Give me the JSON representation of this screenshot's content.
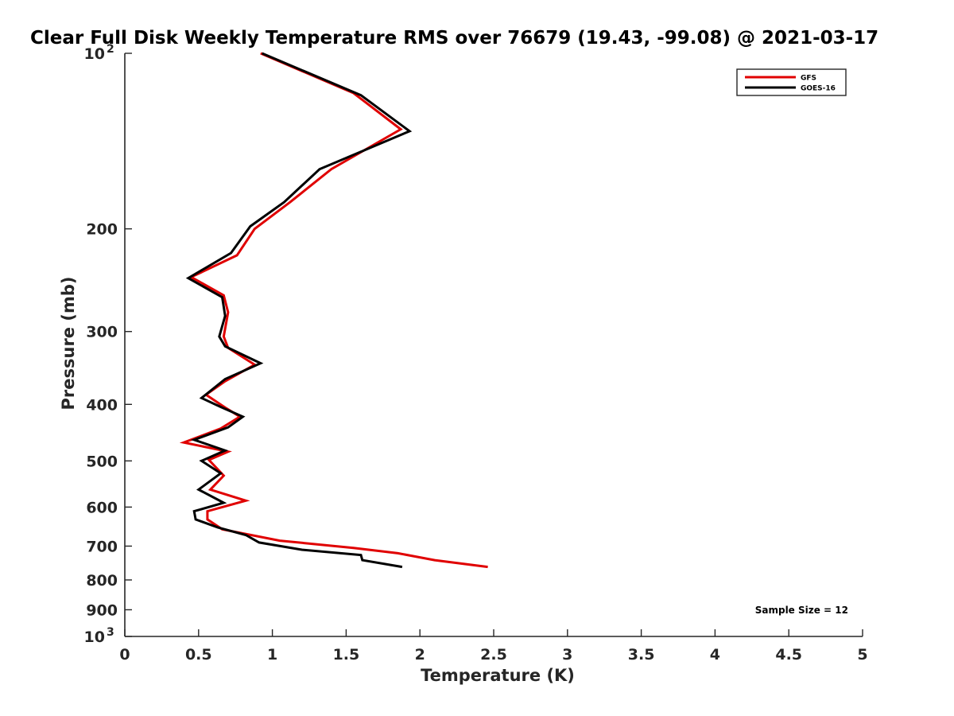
{
  "chart_data": {
    "type": "line",
    "title": "Clear Full Disk Weekly Temperature RMS over 76679 (19.43, -99.08) @ 2021-03-17",
    "xlabel": "Temperature (K)",
    "ylabel": "Pressure (mb)",
    "xlim": [
      0,
      5
    ],
    "ylim": [
      100,
      1000
    ],
    "y_scale": "log",
    "y_reversed": true,
    "x_ticks": [
      "0",
      "0.5",
      "1",
      "1.5",
      "2",
      "2.5",
      "3",
      "3.5",
      "4",
      "4.5",
      "5"
    ],
    "y_ticks": [
      {
        "value": 100,
        "base": "10",
        "exp": "2"
      },
      {
        "value": 200,
        "label": "200"
      },
      {
        "value": 300,
        "label": "300"
      },
      {
        "value": 400,
        "label": "400"
      },
      {
        "value": 500,
        "label": "500"
      },
      {
        "value": 600,
        "label": "600"
      },
      {
        "value": 700,
        "label": "700"
      },
      {
        "value": 800,
        "label": "800"
      },
      {
        "value": 900,
        "label": "900"
      },
      {
        "value": 1000,
        "base": "10",
        "exp": "3"
      }
    ],
    "grid": false,
    "legend_position": "top-right",
    "annotation": "Sample Size = 12",
    "series": [
      {
        "name": "GFS",
        "color": "#e00000",
        "points": [
          [
            0.92,
            100
          ],
          [
            1.55,
            117
          ],
          [
            1.87,
            135
          ],
          [
            1.4,
            158
          ],
          [
            1.12,
            180
          ],
          [
            0.88,
            200
          ],
          [
            0.76,
            222
          ],
          [
            0.45,
            242
          ],
          [
            0.67,
            260
          ],
          [
            0.7,
            278
          ],
          [
            0.67,
            306
          ],
          [
            0.7,
            320
          ],
          [
            0.88,
            342
          ],
          [
            0.68,
            365
          ],
          [
            0.55,
            385
          ],
          [
            0.68,
            405
          ],
          [
            0.78,
            420
          ],
          [
            0.65,
            440
          ],
          [
            0.4,
            465
          ],
          [
            0.7,
            482
          ],
          [
            0.57,
            498
          ],
          [
            0.67,
            530
          ],
          [
            0.58,
            560
          ],
          [
            0.82,
            585
          ],
          [
            0.56,
            610
          ],
          [
            0.56,
            630
          ],
          [
            0.66,
            655
          ],
          [
            1.05,
            685
          ],
          [
            1.55,
            705
          ],
          [
            1.85,
            720
          ],
          [
            2.1,
            740
          ],
          [
            2.46,
            760
          ]
        ]
      },
      {
        "name": "GOES-16",
        "color": "#000000",
        "points": [
          [
            0.93,
            100
          ],
          [
            1.6,
            118
          ],
          [
            1.93,
            136
          ],
          [
            1.32,
            158
          ],
          [
            1.08,
            180
          ],
          [
            0.85,
            198
          ],
          [
            0.72,
            220
          ],
          [
            0.43,
            243
          ],
          [
            0.66,
            262
          ],
          [
            0.68,
            282
          ],
          [
            0.64,
            306
          ],
          [
            0.68,
            318
          ],
          [
            0.92,
            340
          ],
          [
            0.68,
            362
          ],
          [
            0.52,
            390
          ],
          [
            0.65,
            404
          ],
          [
            0.8,
            420
          ],
          [
            0.7,
            438
          ],
          [
            0.47,
            460
          ],
          [
            0.68,
            480
          ],
          [
            0.52,
            500
          ],
          [
            0.65,
            525
          ],
          [
            0.5,
            560
          ],
          [
            0.67,
            590
          ],
          [
            0.47,
            610
          ],
          [
            0.48,
            630
          ],
          [
            0.63,
            650
          ],
          [
            0.82,
            670
          ],
          [
            0.91,
            690
          ],
          [
            1.2,
            710
          ],
          [
            1.6,
            725
          ],
          [
            1.61,
            740
          ],
          [
            1.88,
            760
          ]
        ]
      }
    ]
  }
}
